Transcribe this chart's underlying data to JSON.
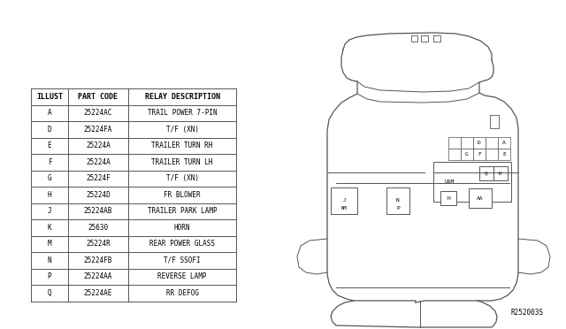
{
  "ref_code": "R252003S",
  "bg_color": "#ffffff",
  "line_color": "#555555",
  "table": {
    "headers": [
      "ILLUST",
      "PART CODE",
      "RELAY DESCRIPTION"
    ],
    "rows": [
      [
        "A",
        "25224AC",
        "TRAIL POWER 7-PIN"
      ],
      [
        "D",
        "25224FA",
        "T/F (XN)"
      ],
      [
        "E",
        "25224A",
        "TRAILER TURN RH"
      ],
      [
        "F",
        "25224A",
        "TRAILER TURN LH"
      ],
      [
        "G",
        "25224F",
        "T/F (XN)"
      ],
      [
        "H",
        "25224D",
        "FR BLOWER"
      ],
      [
        "J",
        "25224AB",
        "TRAILER PARK LAMP"
      ],
      [
        "K",
        "25630",
        "HORN"
      ],
      [
        "M",
        "25224R",
        "REAR POWER GLASS"
      ],
      [
        "N",
        "25224FB",
        "T/F SSOFI"
      ],
      [
        "P",
        "25224AA",
        "REVERSE LAMP"
      ],
      [
        "Q",
        "25224AE",
        "RR DEFOG"
      ]
    ]
  }
}
